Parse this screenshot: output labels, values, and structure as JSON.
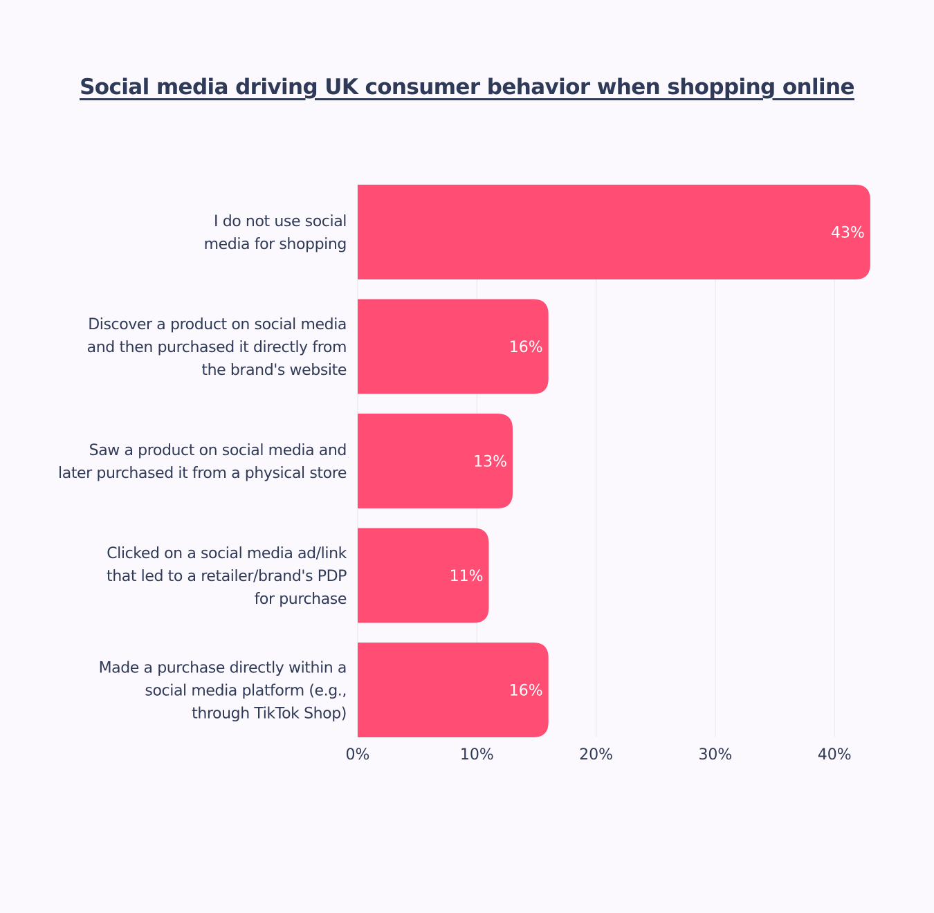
{
  "chart_data": {
    "type": "bar",
    "orientation": "horizontal",
    "title": "Social media driving UK consumer behavior when shopping online",
    "categories": [
      [
        "I do not  use social",
        "media for shopping"
      ],
      [
        "Discover a product on social media",
        "and then purchased it directly from",
        "the brand's website"
      ],
      [
        "Saw a product on social media and",
        "later purchased it from a physical store"
      ],
      [
        "Clicked on a social media ad/link",
        "that led to a retailer/brand's PDP",
        "for purchase"
      ],
      [
        "Made a purchase directly within a",
        "social media platform (e.g.,",
        "through TikTok Shop)"
      ]
    ],
    "values": [
      43,
      16,
      13,
      11,
      16
    ],
    "value_labels": [
      "43%",
      "16%",
      "13%",
      "11%",
      "16%"
    ],
    "xlim": [
      0,
      43
    ],
    "x_ticks": [
      0,
      10,
      20,
      30,
      40
    ],
    "x_tick_labels": [
      "0%",
      "10%",
      "20%",
      "30%",
      "40%"
    ],
    "grid": true,
    "bar_color": "#ff4d73",
    "grid_color": "#ebe6ee",
    "text_color": "#2e3a57"
  }
}
